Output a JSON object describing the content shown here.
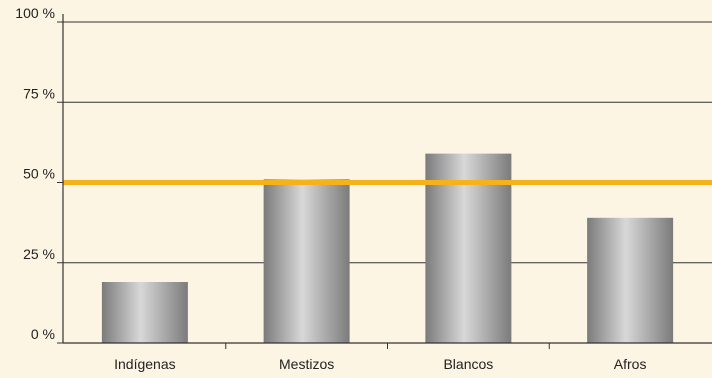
{
  "chart_data": {
    "type": "bar",
    "categories": [
      "Indígenas",
      "Mestizos",
      "Blancos",
      "Afros"
    ],
    "values": [
      19,
      51,
      59,
      39
    ],
    "ylim": [
      0,
      100
    ],
    "yticks": [
      {
        "value": 0,
        "label": "0 %"
      },
      {
        "value": 25,
        "label": "25 %"
      },
      {
        "value": 50,
        "label": "50 %"
      },
      {
        "value": 75,
        "label": "75 %"
      },
      {
        "value": 100,
        "label": "100 %"
      }
    ],
    "reference_line": {
      "value": 50,
      "color": "#f5b21b"
    },
    "bar_color": "#a3a3a3",
    "grid": true
  }
}
